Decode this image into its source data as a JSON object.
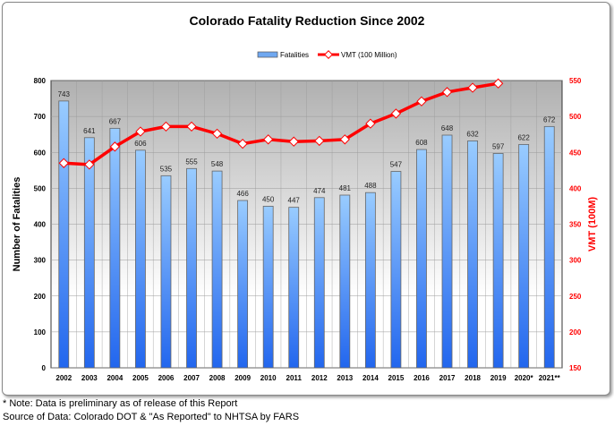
{
  "chart_data": {
    "type": "bar+line",
    "title": "Colorado Fatality Reduction Since 2002",
    "categories": [
      "2002",
      "2003",
      "2004",
      "2005",
      "2006",
      "2007",
      "2008",
      "2009",
      "2010",
      "2011",
      "2012",
      "2013",
      "2014",
      "2015",
      "2016",
      "2017",
      "2018",
      "2019",
      "2020*",
      "2021**"
    ],
    "series": [
      {
        "name": "Fatalities",
        "axis": "left",
        "type": "bar",
        "color": "#5599ff",
        "values": [
          743,
          641,
          667,
          606,
          535,
          555,
          548,
          466,
          450,
          447,
          474,
          481,
          488,
          547,
          608,
          648,
          632,
          597,
          622,
          672
        ]
      },
      {
        "name": "VMT (100 Million)",
        "axis": "right",
        "type": "line",
        "color": "#ff0000",
        "values": [
          435,
          433,
          458,
          479,
          486,
          486,
          476,
          462,
          468,
          465,
          466,
          468,
          490,
          504,
          521,
          534,
          540,
          546,
          null,
          null
        ]
      }
    ],
    "ylabel": "Number of Fatalities",
    "ylim": [
      0,
      800
    ],
    "yticks": [
      0,
      100,
      200,
      300,
      400,
      500,
      600,
      700,
      800
    ],
    "y2label": "VMT (100M)",
    "y2lim": [
      150,
      550
    ],
    "y2ticks": [
      150,
      200,
      250,
      300,
      350,
      400,
      450,
      500,
      550
    ],
    "legend": "top-center",
    "grid": true
  },
  "notes": {
    "line1": "* Note: Data is preliminary as of release of this Report",
    "line2": "Source of Data: Colorado DOT & \"As Reported\" to NHTSA by FARS"
  }
}
